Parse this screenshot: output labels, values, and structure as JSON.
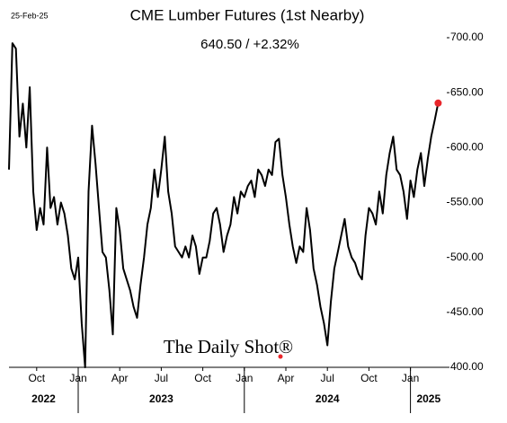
{
  "chart_data": {
    "type": "line",
    "title": "CME Lumber Futures (1st Nearby)",
    "subtitle": "640.50  /  +2.32%",
    "date_label": "25-Feb-25",
    "watermark": "The Daily Shot®",
    "categories": [
      null,
      null,
      null,
      null,
      null,
      null,
      null,
      null,
      "Oct",
      null,
      null,
      null,
      null,
      null,
      null,
      null,
      null,
      null,
      null,
      null,
      "Jan",
      null,
      null,
      null,
      null,
      null,
      null,
      null,
      null,
      null,
      null,
      null,
      "Apr",
      null,
      null,
      null,
      null,
      null,
      null,
      null,
      null,
      null,
      null,
      null,
      "Jul",
      null,
      null,
      null,
      null,
      null,
      null,
      null,
      null,
      null,
      null,
      null,
      "Oct",
      null,
      null,
      null,
      null,
      null,
      null,
      null,
      null,
      null,
      null,
      null,
      "Jan",
      null,
      null,
      null,
      null,
      null,
      null,
      null,
      null,
      null,
      null,
      null,
      "Apr",
      null,
      null,
      null,
      null,
      null,
      null,
      null,
      null,
      null,
      null,
      null,
      "Jul",
      null,
      null,
      null,
      null,
      null,
      null,
      null,
      null,
      null,
      null,
      null,
      "Oct",
      null,
      null,
      null,
      null,
      null,
      null,
      null,
      null,
      null,
      null,
      null,
      "Jan",
      null,
      null,
      null,
      null,
      null,
      null,
      null,
      null
    ],
    "years": [
      "2022",
      "2023",
      "2024",
      "2025"
    ],
    "series": [
      {
        "name": "CME Lumber Futures",
        "color": "#000000",
        "values": [
          580,
          695,
          690,
          610,
          640,
          600,
          655,
          560,
          525,
          545,
          530,
          600,
          545,
          555,
          530,
          550,
          540,
          520,
          490,
          480,
          500,
          440,
          400,
          560,
          620,
          585,
          545,
          505,
          500,
          470,
          430,
          545,
          525,
          490,
          480,
          470,
          455,
          445,
          475,
          500,
          530,
          545,
          580,
          555,
          580,
          610,
          560,
          540,
          510,
          505,
          500,
          510,
          500,
          520,
          510,
          485,
          500,
          500,
          515,
          540,
          545,
          530,
          505,
          520,
          530,
          555,
          540,
          560,
          555,
          565,
          570,
          555,
          580,
          575,
          565,
          580,
          575,
          605,
          608,
          575,
          555,
          530,
          510,
          495,
          510,
          505,
          545,
          525,
          490,
          475,
          455,
          440,
          420,
          460,
          490,
          505,
          520,
          535,
          510,
          500,
          495,
          485,
          480,
          520,
          545,
          540,
          530,
          560,
          540,
          575,
          595,
          610,
          580,
          575,
          560,
          535,
          570,
          555,
          580,
          595,
          565,
          590,
          610,
          625,
          640.5
        ]
      }
    ],
    "last_point_color": "#e8262b",
    "ylim": [
      400,
      700
    ],
    "yticks": [
      {
        "value": 400,
        "label": "400.00"
      },
      {
        "value": 450,
        "label": "450.00"
      },
      {
        "value": 500,
        "label": "500.00"
      },
      {
        "value": 550,
        "label": "550.00"
      },
      {
        "value": 600,
        "label": "600.00"
      },
      {
        "value": 650,
        "label": "650.00"
      },
      {
        "value": 700,
        "label": "700.00"
      }
    ],
    "grid": false
  }
}
